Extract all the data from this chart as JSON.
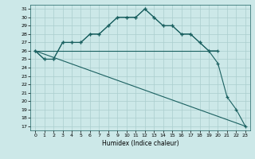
{
  "xlabel": "Humidex (Indice chaleur)",
  "ylabel": "",
  "background_color": "#cce8e8",
  "grid_color": "#aacece",
  "line_color": "#1a6060",
  "xlim": [
    -0.5,
    23.5
  ],
  "ylim": [
    16.5,
    31.5
  ],
  "yticks": [
    17,
    18,
    19,
    20,
    21,
    22,
    23,
    24,
    25,
    26,
    27,
    28,
    29,
    30,
    31
  ],
  "xticks": [
    0,
    1,
    2,
    3,
    4,
    5,
    6,
    7,
    8,
    9,
    10,
    11,
    12,
    13,
    14,
    15,
    16,
    17,
    18,
    19,
    20,
    21,
    22,
    23
  ],
  "series": [
    {
      "x": [
        0,
        1,
        2,
        3,
        4,
        5,
        6,
        7,
        8,
        9,
        10,
        11,
        12,
        13,
        14,
        15,
        16,
        17,
        18,
        19,
        20
      ],
      "y": [
        26,
        25,
        25,
        27,
        27,
        27,
        28,
        28,
        29,
        30,
        30,
        30,
        31,
        30,
        29,
        29,
        28,
        28,
        27,
        26,
        26
      ],
      "marker": true
    },
    {
      "x": [
        0,
        1,
        2,
        3,
        4,
        5,
        6,
        7,
        8,
        9,
        10,
        11,
        12,
        13,
        14,
        15,
        16,
        17,
        18,
        19,
        20,
        21,
        22,
        23
      ],
      "y": [
        26,
        25,
        25,
        27,
        27,
        27,
        28,
        28,
        29,
        30,
        30,
        30,
        31,
        30,
        29,
        29,
        28,
        28,
        27,
        26,
        24.5,
        20.5,
        19,
        17
      ],
      "marker": true
    },
    {
      "x": [
        0,
        19,
        20
      ],
      "y": [
        26,
        26,
        26
      ],
      "marker": false
    },
    {
      "x": [
        0,
        23
      ],
      "y": [
        26,
        17
      ],
      "marker": false
    }
  ]
}
